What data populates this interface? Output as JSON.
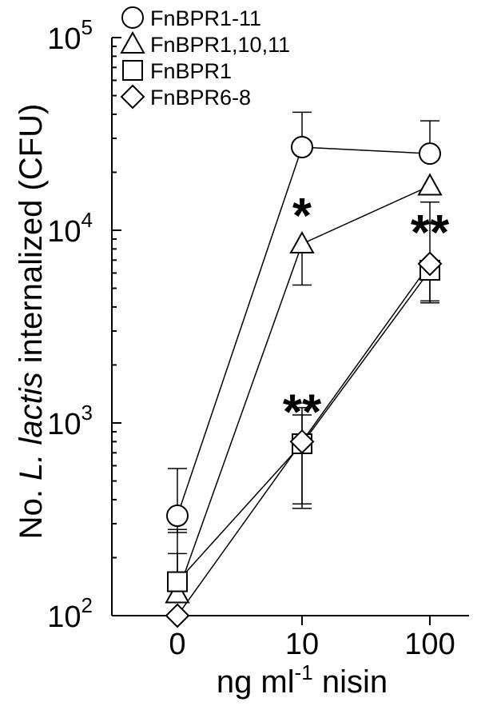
{
  "chart_data": {
    "type": "line",
    "title": "",
    "xlabel": {
      "prefix": "ng ml",
      "superscript": "-1",
      "suffix": " nisin"
    },
    "ylabel": {
      "prefix": "No. ",
      "italic": "L. lactis",
      "suffix": " internalized (CFU)"
    },
    "y_scale": "log",
    "ylim": [
      100,
      100000
    ],
    "categories": [
      "0",
      "10",
      "100"
    ],
    "y_ticks": [
      {
        "value": 100,
        "base": "10",
        "exp": "2"
      },
      {
        "value": 1000,
        "base": "10",
        "exp": "3"
      },
      {
        "value": 10000,
        "base": "10",
        "exp": "4"
      },
      {
        "value": 100000,
        "base": "10",
        "exp": "5"
      }
    ],
    "grid": false,
    "legend_position": "top-left",
    "series": [
      {
        "name": "FnBPR1-11",
        "marker": "circle",
        "values": [
          330,
          27000,
          25000
        ],
        "error_high": [
          580,
          41000,
          37000
        ],
        "error_low": [
          270,
          27000,
          25000
        ]
      },
      {
        "name": "FnBPR1,10,11",
        "marker": "triangle",
        "values": [
          130,
          8500,
          17000
        ],
        "error_high": [
          210,
          8500,
          17000
        ],
        "error_low": [
          130,
          5200,
          17000
        ]
      },
      {
        "name": "FnBPR1",
        "marker": "square",
        "values": [
          150,
          780,
          6200
        ],
        "error_high": [
          280,
          1200,
          6200
        ],
        "error_low": [
          150,
          380,
          4200
        ]
      },
      {
        "name": "FnBPR6-8",
        "marker": "diamond",
        "values": [
          100,
          800,
          6700
        ],
        "error_high": [
          100,
          1100,
          14000
        ],
        "error_low": [
          100,
          360,
          4300
        ]
      }
    ],
    "annotations": [
      {
        "text": "*",
        "category": "10",
        "value": 12000
      },
      {
        "text": "**",
        "category": "10",
        "value": 1150
      },
      {
        "text": "**",
        "category": "100",
        "value": 9800
      }
    ]
  }
}
